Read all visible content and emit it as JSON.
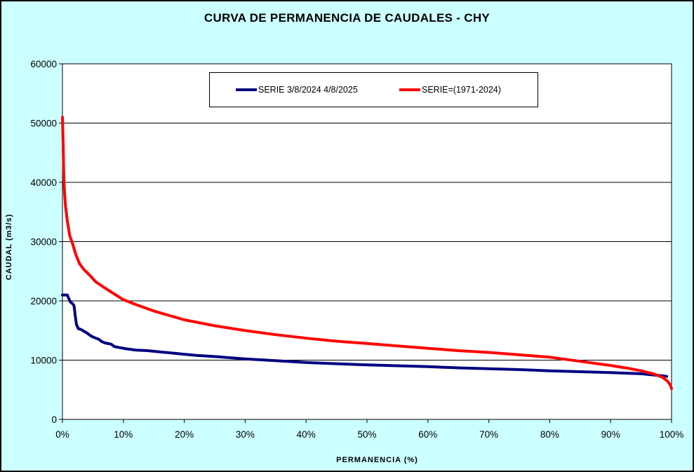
{
  "chart_data": {
    "type": "line",
    "title": "CURVA DE PERMANENCIA DE CAUDALES - CHY",
    "xlabel": "PERMANENCIA (%)",
    "ylabel": "CAUDAL (m3/s)",
    "xlim": [
      0,
      100
    ],
    "ylim": [
      0,
      60000
    ],
    "x_ticks": [
      "0%",
      "10%",
      "20%",
      "30%",
      "40%",
      "50%",
      "60%",
      "70%",
      "80%",
      "90%",
      "100%"
    ],
    "y_ticks": [
      "0",
      "10000",
      "20000",
      "30000",
      "40000",
      "50000",
      "60000"
    ],
    "grid": "horizontal",
    "legend_position": "top-center",
    "series": [
      {
        "name": "SERIE 3/8/2024 4/8/2025",
        "color": "#000080",
        "points": [
          [
            0.0,
            21000
          ],
          [
            0.8,
            21000
          ],
          [
            1.0,
            20500
          ],
          [
            1.3,
            19800
          ],
          [
            1.6,
            19600
          ],
          [
            1.9,
            19200
          ],
          [
            2.1,
            17500
          ],
          [
            2.3,
            16000
          ],
          [
            2.6,
            15300
          ],
          [
            3.0,
            15200
          ],
          [
            3.5,
            14900
          ],
          [
            4.0,
            14600
          ],
          [
            4.5,
            14200
          ],
          [
            5.0,
            13900
          ],
          [
            5.5,
            13700
          ],
          [
            6.0,
            13500
          ],
          [
            6.5,
            13100
          ],
          [
            7.0,
            12900
          ],
          [
            8.0,
            12700
          ],
          [
            8.5,
            12300
          ],
          [
            9.5,
            12100
          ],
          [
            10.5,
            11900
          ],
          [
            12.0,
            11700
          ],
          [
            14.0,
            11600
          ],
          [
            16.0,
            11400
          ],
          [
            18.0,
            11200
          ],
          [
            20.0,
            11000
          ],
          [
            22.0,
            10800
          ],
          [
            25.0,
            10600
          ],
          [
            30.0,
            10200
          ],
          [
            35.0,
            9900
          ],
          [
            40.0,
            9600
          ],
          [
            45.0,
            9400
          ],
          [
            50.0,
            9200
          ],
          [
            55.0,
            9050
          ],
          [
            60.0,
            8900
          ],
          [
            65.0,
            8700
          ],
          [
            70.0,
            8550
          ],
          [
            75.0,
            8400
          ],
          [
            80.0,
            8200
          ],
          [
            85.0,
            8050
          ],
          [
            90.0,
            7900
          ],
          [
            95.0,
            7700
          ],
          [
            97.0,
            7500
          ],
          [
            98.5,
            7350
          ],
          [
            99.2,
            7250
          ]
        ]
      },
      {
        "name": "SERIE=(1971-2024)",
        "color": "#ff0000",
        "points": [
          [
            0.0,
            51000
          ],
          [
            0.1,
            47000
          ],
          [
            0.2,
            42000
          ],
          [
            0.3,
            39000
          ],
          [
            0.5,
            36000
          ],
          [
            0.8,
            33500
          ],
          [
            1.2,
            31000
          ],
          [
            1.7,
            29500
          ],
          [
            2.2,
            27800
          ],
          [
            2.8,
            26300
          ],
          [
            3.5,
            25300
          ],
          [
            4.5,
            24300
          ],
          [
            5.5,
            23200
          ],
          [
            6.5,
            22500
          ],
          [
            8.0,
            21500
          ],
          [
            10.0,
            20200
          ],
          [
            12.0,
            19400
          ],
          [
            15.0,
            18300
          ],
          [
            18.0,
            17400
          ],
          [
            20.0,
            16800
          ],
          [
            25.0,
            15800
          ],
          [
            30.0,
            15000
          ],
          [
            35.0,
            14300
          ],
          [
            40.0,
            13700
          ],
          [
            45.0,
            13200
          ],
          [
            50.0,
            12800
          ],
          [
            55.0,
            12400
          ],
          [
            60.0,
            12000
          ],
          [
            65.0,
            11600
          ],
          [
            70.0,
            11300
          ],
          [
            75.0,
            10900
          ],
          [
            80.0,
            10500
          ],
          [
            85.0,
            9800
          ],
          [
            90.0,
            9100
          ],
          [
            93.0,
            8600
          ],
          [
            95.0,
            8200
          ],
          [
            97.0,
            7700
          ],
          [
            98.5,
            7100
          ],
          [
            99.3,
            6500
          ],
          [
            99.8,
            5800
          ],
          [
            100.0,
            5200
          ]
        ]
      }
    ]
  }
}
